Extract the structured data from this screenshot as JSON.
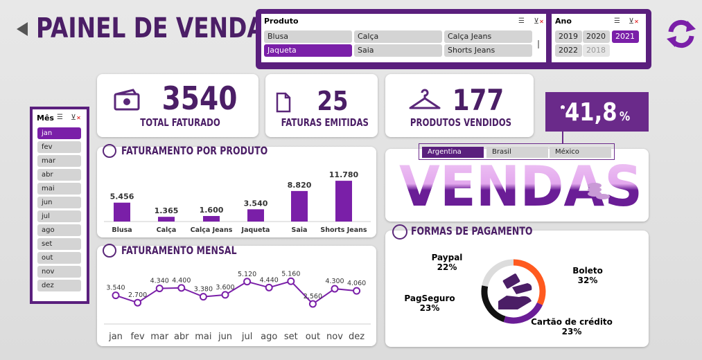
{
  "header": {
    "title": "PAINEL DE VENDAS"
  },
  "produto_slicer": {
    "title": "Produto",
    "items": [
      {
        "label": "Blusa",
        "selected": false
      },
      {
        "label": "Calça",
        "selected": false
      },
      {
        "label": "Calça Jeans",
        "selected": false
      },
      {
        "label": "Jaqueta",
        "selected": true
      },
      {
        "label": "Saia",
        "selected": false
      },
      {
        "label": "Shorts Jeans",
        "selected": false
      }
    ]
  },
  "ano_slicer": {
    "title": "Ano",
    "items": [
      {
        "label": "2019",
        "state": "normal"
      },
      {
        "label": "2020",
        "state": "normal"
      },
      {
        "label": "2021",
        "state": "selected"
      },
      {
        "label": "2022",
        "state": "normal"
      },
      {
        "label": "2018",
        "state": "dim"
      }
    ]
  },
  "mes_slicer": {
    "title": "Mês",
    "items": [
      "jan",
      "fev",
      "mar",
      "abr",
      "mai",
      "jun",
      "jul",
      "ago",
      "set",
      "out",
      "nov",
      "dez"
    ],
    "selected": "jan"
  },
  "kpis": {
    "total_faturado": {
      "value": "3540",
      "label": "TOTAL FATURADO"
    },
    "faturas_emitidas": {
      "value": "25",
      "label": "FATURAS EMITIDAS"
    },
    "produtos_vendidos": {
      "value": "177",
      "label": "PRODUTOS VENDIDOS"
    },
    "percent": {
      "value": "41,8",
      "unit": "%"
    }
  },
  "country_slicer": {
    "items": [
      {
        "label": "Argentina",
        "selected": true
      },
      {
        "label": "Brasil",
        "selected": false
      },
      {
        "label": "México",
        "selected": false
      }
    ]
  },
  "vendas_banner": {
    "text": "VENDAS"
  },
  "sections": {
    "produto_title": "FATURAMENTO POR PRODUTO",
    "mensal_title": "FATURAMENTO MENSAL",
    "pagamento_title": "FORMAS DE PAGAMENTO"
  },
  "chart_data": [
    {
      "type": "bar",
      "categories": [
        "Blusa",
        "Calça",
        "Calça Jeans",
        "Jaqueta",
        "Saia",
        "Shorts Jeans"
      ],
      "values": [
        5456,
        1365,
        1600,
        3540,
        8820,
        11780
      ],
      "value_labels": [
        "5.456",
        "1.365",
        "1.600",
        "3.540",
        "8.820",
        "11.780"
      ],
      "color": "#7a1fa8"
    },
    {
      "type": "line",
      "categories": [
        "jan",
        "fev",
        "mar",
        "abr",
        "mai",
        "jun",
        "jul",
        "ago",
        "set",
        "out",
        "nov",
        "dez"
      ],
      "values": [
        3540,
        2700,
        4340,
        4400,
        3380,
        3600,
        5120,
        4440,
        5160,
        2560,
        4300,
        4060
      ],
      "value_labels": [
        "3.540",
        "2.700",
        "4.340",
        "4.400",
        "3.380",
        "3.600",
        "5.120",
        "4.440",
        "5.160",
        "2.560",
        "4.300",
        "4.060"
      ],
      "color": "#7a1fa8"
    },
    {
      "type": "pie",
      "slices": [
        {
          "name": "Boleto",
          "percent": 32,
          "label": "32%",
          "color": "#ff5a1f"
        },
        {
          "name": "Cartão de crédito",
          "percent": 23,
          "label": "23%",
          "color": "#6a1d96"
        },
        {
          "name": "PagSeguro",
          "percent": 23,
          "label": "23%",
          "color": "#111111"
        },
        {
          "name": "Paypal",
          "percent": 22,
          "label": "22%",
          "color": "#dcdcdc"
        }
      ]
    }
  ]
}
